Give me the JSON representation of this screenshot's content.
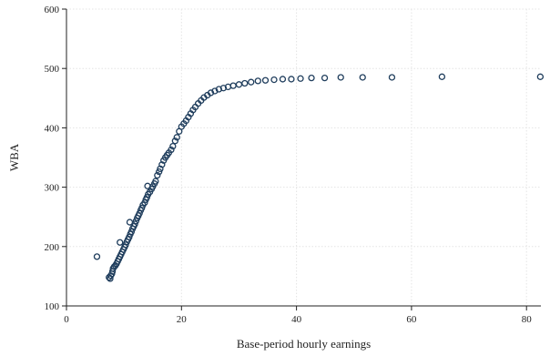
{
  "chart_data": {
    "type": "scatter",
    "title": "",
    "xlabel": "Base-period hourly earnings",
    "ylabel": "WBA",
    "xlim": [
      0,
      82.5
    ],
    "ylim": [
      100,
      600
    ],
    "xticks": [
      0,
      20,
      40,
      60,
      80
    ],
    "yticks": [
      100,
      200,
      300,
      400,
      500,
      600
    ],
    "grid": true,
    "marker": "hollow-circle",
    "marker_color": "#1f3d5c",
    "series": [
      {
        "points": [
          [
            5.3,
            183
          ],
          [
            9.3,
            207
          ],
          [
            7.4,
            148
          ],
          [
            7.6,
            146
          ],
          [
            7.7,
            151
          ],
          [
            7.9,
            154
          ],
          [
            8.0,
            158
          ],
          [
            8.1,
            163
          ],
          [
            8.3,
            166
          ],
          [
            8.5,
            168
          ],
          [
            8.7,
            171
          ],
          [
            8.9,
            175
          ],
          [
            9.1,
            179
          ],
          [
            9.3,
            183
          ],
          [
            9.5,
            187
          ],
          [
            9.7,
            191
          ],
          [
            9.9,
            195
          ],
          [
            10.1,
            199
          ],
          [
            10.3,
            203
          ],
          [
            10.5,
            208
          ],
          [
            10.7,
            212
          ],
          [
            10.9,
            216
          ],
          [
            11.1,
            221
          ],
          [
            11.3,
            225
          ],
          [
            11.0,
            241
          ],
          [
            11.5,
            230
          ],
          [
            11.7,
            234
          ],
          [
            11.9,
            238
          ],
          [
            12.1,
            243
          ],
          [
            12.3,
            248
          ],
          [
            12.5,
            252
          ],
          [
            12.7,
            256
          ],
          [
            12.9,
            261
          ],
          [
            13.1,
            265
          ],
          [
            13.3,
            270
          ],
          [
            13.6,
            274
          ],
          [
            13.8,
            279
          ],
          [
            14.0,
            283
          ],
          [
            14.2,
            288
          ],
          [
            14.1,
            302
          ],
          [
            14.5,
            292
          ],
          [
            14.8,
            297
          ],
          [
            15.0,
            301
          ],
          [
            15.3,
            306
          ],
          [
            15.5,
            310
          ],
          [
            15.8,
            320
          ],
          [
            16.1,
            326
          ],
          [
            16.3,
            331
          ],
          [
            16.6,
            338
          ],
          [
            16.9,
            345
          ],
          [
            17.2,
            350
          ],
          [
            17.5,
            354
          ],
          [
            17.8,
            358
          ],
          [
            18.2,
            363
          ],
          [
            18.5,
            369
          ],
          [
            18.9,
            378
          ],
          [
            19.2,
            384
          ],
          [
            19.6,
            394
          ],
          [
            20.0,
            402
          ],
          [
            20.4,
            407
          ],
          [
            20.8,
            412
          ],
          [
            21.2,
            418
          ],
          [
            21.6,
            424
          ],
          [
            22.0,
            430
          ],
          [
            22.4,
            435
          ],
          [
            22.9,
            441
          ],
          [
            23.4,
            446
          ],
          [
            23.9,
            451
          ],
          [
            24.5,
            455
          ],
          [
            25.1,
            459
          ],
          [
            25.8,
            462
          ],
          [
            26.5,
            465
          ],
          [
            27.3,
            467
          ],
          [
            28.1,
            469
          ],
          [
            29.0,
            471
          ],
          [
            30.0,
            473
          ],
          [
            31.0,
            475
          ],
          [
            32.1,
            477
          ],
          [
            33.3,
            479
          ],
          [
            34.6,
            480
          ],
          [
            36.1,
            481
          ],
          [
            37.6,
            482
          ],
          [
            39.1,
            482
          ],
          [
            40.7,
            483
          ],
          [
            42.6,
            484
          ],
          [
            44.9,
            484
          ],
          [
            47.7,
            485
          ],
          [
            51.5,
            485
          ],
          [
            56.6,
            485
          ],
          [
            65.3,
            486
          ],
          [
            82.4,
            486
          ]
        ]
      }
    ]
  }
}
